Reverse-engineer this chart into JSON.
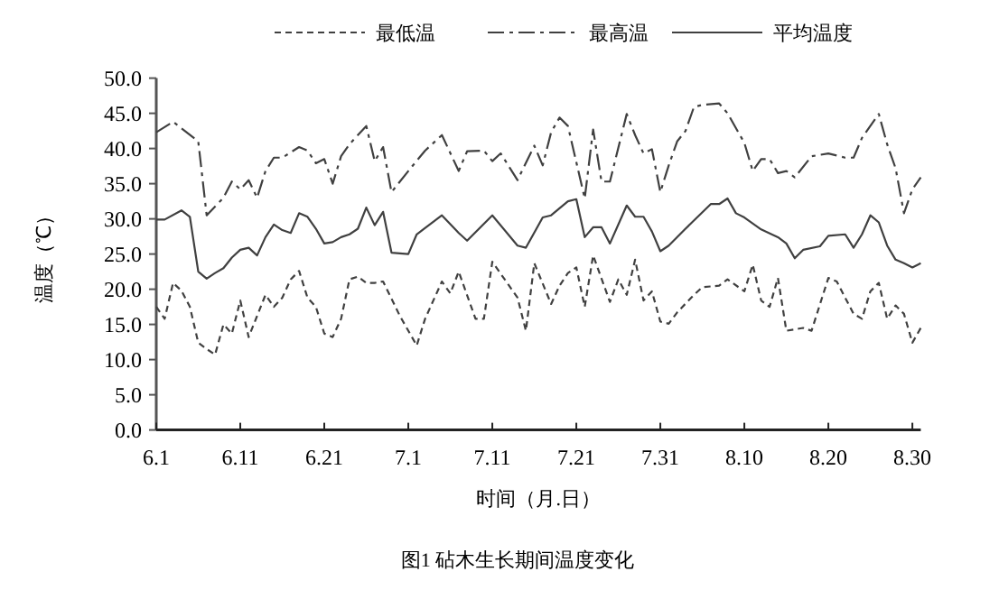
{
  "chart_data": {
    "type": "line",
    "title": "图1 砧木生长期间温度变化",
    "xlabel": "时间（月.日）",
    "ylabel": "温度（℃）",
    "legend": "top",
    "grid": false,
    "marker": "none",
    "xlim": [
      "--06-01",
      "--08-31"
    ],
    "xticks": [
      {
        "value": "--06-01",
        "label": "6.1"
      },
      {
        "value": "--06-11",
        "label": "6.11"
      },
      {
        "value": "--06-21",
        "label": "6.21"
      },
      {
        "value": "--07-01",
        "label": "7.1"
      },
      {
        "value": "--07-11",
        "label": "7.11"
      },
      {
        "value": "--07-21",
        "label": "7.21"
      },
      {
        "value": "--07-31",
        "label": "7.31"
      },
      {
        "value": "--08-10",
        "label": "8.10"
      },
      {
        "value": "--08-20",
        "label": "8.20"
      },
      {
        "value": "--08-30",
        "label": "8.30"
      }
    ],
    "ylim": [
      0,
      50
    ],
    "yticks": [
      {
        "value": 0,
        "label": "0.0"
      },
      {
        "value": 5,
        "label": "5.0"
      },
      {
        "value": 10,
        "label": "10.0"
      },
      {
        "value": 15,
        "label": "15.0"
      },
      {
        "value": 20,
        "label": "20.0"
      },
      {
        "value": 25,
        "label": "25.0"
      },
      {
        "value": 30,
        "label": "30.0"
      },
      {
        "value": 35,
        "label": "35.0"
      },
      {
        "value": 40,
        "label": "40.0"
      },
      {
        "value": 45,
        "label": "45.0"
      },
      {
        "value": 50,
        "label": "50.0"
      }
    ],
    "series": [
      {
        "name": "最低温",
        "color": "#404040",
        "line_style": "dashed",
        "x": [
          "--06-01",
          "--06-02",
          "--06-03",
          "--06-04",
          "--06-05",
          "--06-06",
          "--06-07",
          "--06-08",
          "--06-09",
          "--06-10",
          "--06-11",
          "--06-12",
          "--06-13",
          "--06-14",
          "--06-15",
          "--06-16",
          "--06-17",
          "--06-18",
          "--06-19",
          "--06-20",
          "--06-21",
          "--06-22",
          "--06-23",
          "--06-24",
          "--06-25",
          "--06-26",
          "--06-27",
          "--06-28",
          "--06-30",
          "--07-02",
          "--07-03",
          "--07-05",
          "--07-06",
          "--07-07",
          "--07-09",
          "--07-10",
          "--07-11",
          "--07-13",
          "--07-14",
          "--07-15",
          "--07-16",
          "--07-18",
          "--07-19",
          "--07-20",
          "--07-21",
          "--07-22",
          "--07-23",
          "--07-25",
          "--07-26",
          "--07-27",
          "--07-28",
          "--07-29",
          "--07-30",
          "--07-31",
          "--08-01",
          "--08-02",
          "--08-04",
          "--08-05",
          "--08-07",
          "--08-08",
          "--08-10",
          "--08-11",
          "--08-12",
          "--08-13",
          "--08-14",
          "--08-15",
          "--08-17",
          "--08-18",
          "--08-20",
          "--08-21",
          "--08-23",
          "--08-24",
          "--08-25",
          "--08-26",
          "--08-27",
          "--08-28",
          "--08-29",
          "--08-30",
          "--08-31"
        ],
        "values": [
          17.5,
          15.8,
          20.9,
          19.8,
          17.5,
          12.4,
          11.5,
          10.7,
          15,
          13.7,
          18.4,
          13.2,
          16.2,
          19.2,
          17.5,
          18.8,
          21.4,
          22.6,
          18.8,
          17.5,
          13.7,
          13.2,
          15.8,
          21.4,
          21.8,
          20.9,
          20.9,
          21.1,
          16.2,
          12,
          15.8,
          21.1,
          19.4,
          22.5,
          15.8,
          15.8,
          23.9,
          20.5,
          18.8,
          14.1,
          23.7,
          17.9,
          20.5,
          22.3,
          23.1,
          17.5,
          24.8,
          18.2,
          21.4,
          19.2,
          24.2,
          18.4,
          19.7,
          15.4,
          15.1,
          16.7,
          19.2,
          20.3,
          20.5,
          21.4,
          19.7,
          23.5,
          18.4,
          17.5,
          21.6,
          14.1,
          14.5,
          14.1,
          21.6,
          21.1,
          16.5,
          15.8,
          19.7,
          20.9,
          15.8,
          17.7,
          16.5,
          12.4,
          14.5
        ]
      },
      {
        "name": "最高温",
        "color": "#404040",
        "line_style": "dashdot",
        "x": [
          "--06-01",
          "--06-03",
          "--06-06",
          "--06-07",
          "--06-09",
          "--06-10",
          "--06-11",
          "--06-12",
          "--06-13",
          "--06-14",
          "--06-15",
          "--06-16",
          "--06-18",
          "--06-19",
          "--06-20",
          "--06-21",
          "--06-22",
          "--06-23",
          "--06-24",
          "--06-26",
          "--06-27",
          "--06-28",
          "--06-29",
          "--07-01",
          "--07-03",
          "--07-05",
          "--07-07",
          "--07-08",
          "--07-10",
          "--07-11",
          "--07-12",
          "--07-14",
          "--07-16",
          "--07-17",
          "--07-18",
          "--07-19",
          "--07-20",
          "--07-22",
          "--07-23",
          "--07-24",
          "--07-25",
          "--07-27",
          "--07-28",
          "--07-29",
          "--07-30",
          "--07-31",
          "--08-01",
          "--08-02",
          "--08-03",
          "--08-04",
          "--08-05",
          "--08-07",
          "--08-08",
          "--08-10",
          "--08-11",
          "--08-12",
          "--08-13",
          "--08-14",
          "--08-15",
          "--08-16",
          "--08-18",
          "--08-20",
          "--08-22",
          "--08-23",
          "--08-24",
          "--08-26",
          "--08-27",
          "--08-28",
          "--08-29",
          "--08-30",
          "--08-31"
        ],
        "values": [
          42.3,
          43.8,
          41,
          30.5,
          33,
          35.3,
          34.2,
          35.5,
          33,
          36.8,
          38.7,
          38.7,
          40.2,
          39.7,
          37.9,
          38.5,
          35,
          38.9,
          40.6,
          43.2,
          38.2,
          40.2,
          33.8,
          36.8,
          39.7,
          41.9,
          36.8,
          39.6,
          39.7,
          38.2,
          39.3,
          35.5,
          40.4,
          37.6,
          42.3,
          44.4,
          43.2,
          32.9,
          42.7,
          35.3,
          35.3,
          44.9,
          41.9,
          39.3,
          39.9,
          33.8,
          37.6,
          41,
          42.5,
          45.9,
          46.2,
          46.4,
          45,
          40.8,
          36.8,
          38.5,
          38.5,
          36.5,
          36.8,
          35.9,
          38.9,
          39.3,
          38.7,
          38.7,
          41.5,
          44.9,
          40.6,
          37.2,
          30.8,
          34.2,
          35.9
        ]
      },
      {
        "name": "平均温度",
        "color": "#404040",
        "line_style": "solid",
        "x": [
          "--06-01",
          "--06-02",
          "--06-04",
          "--06-05",
          "--06-06",
          "--06-07",
          "--06-08",
          "--06-09",
          "--06-10",
          "--06-11",
          "--06-12",
          "--06-13",
          "--06-14",
          "--06-15",
          "--06-16",
          "--06-17",
          "--06-18",
          "--06-19",
          "--06-20",
          "--06-21",
          "--06-22",
          "--06-23",
          "--06-24",
          "--06-25",
          "--06-26",
          "--06-27",
          "--06-28",
          "--06-29",
          "--07-01",
          "--07-02",
          "--07-05",
          "--07-07",
          "--07-08",
          "--07-11",
          "--07-14",
          "--07-15",
          "--07-17",
          "--07-18",
          "--07-20",
          "--07-21",
          "--07-22",
          "--07-23",
          "--07-24",
          "--07-25",
          "--07-27",
          "--07-28",
          "--07-29",
          "--07-30",
          "--07-31",
          "--08-01",
          "--08-03",
          "--08-06",
          "--08-07",
          "--08-08",
          "--08-09",
          "--08-10",
          "--08-12",
          "--08-14",
          "--08-15",
          "--08-16",
          "--08-17",
          "--08-19",
          "--08-20",
          "--08-22",
          "--08-23",
          "--08-24",
          "--08-25",
          "--08-26",
          "--08-27",
          "--08-28",
          "--08-29",
          "--08-30",
          "--08-31"
        ],
        "values": [
          29.9,
          29.9,
          31.2,
          30.3,
          22.5,
          21.5,
          22.3,
          23,
          24.5,
          25.6,
          25.9,
          24.8,
          27.4,
          29.2,
          28.4,
          28,
          30.8,
          30.3,
          28.6,
          26.5,
          26.7,
          27.4,
          27.8,
          28.6,
          31.6,
          29.1,
          31,
          25.2,
          25,
          27.8,
          30.5,
          28,
          26.9,
          30.5,
          26.2,
          25.9,
          30.2,
          30.5,
          32.5,
          32.8,
          27.4,
          28.8,
          28.8,
          26.5,
          31.9,
          30.3,
          30.3,
          28.2,
          25.4,
          26.2,
          28.6,
          32.1,
          32.1,
          32.9,
          30.8,
          30.2,
          28.5,
          27.4,
          26.5,
          24.4,
          25.6,
          26.1,
          27.6,
          27.8,
          25.9,
          27.8,
          30.5,
          29.5,
          26.2,
          24.2,
          23.7,
          23.1,
          23.7
        ]
      }
    ]
  }
}
